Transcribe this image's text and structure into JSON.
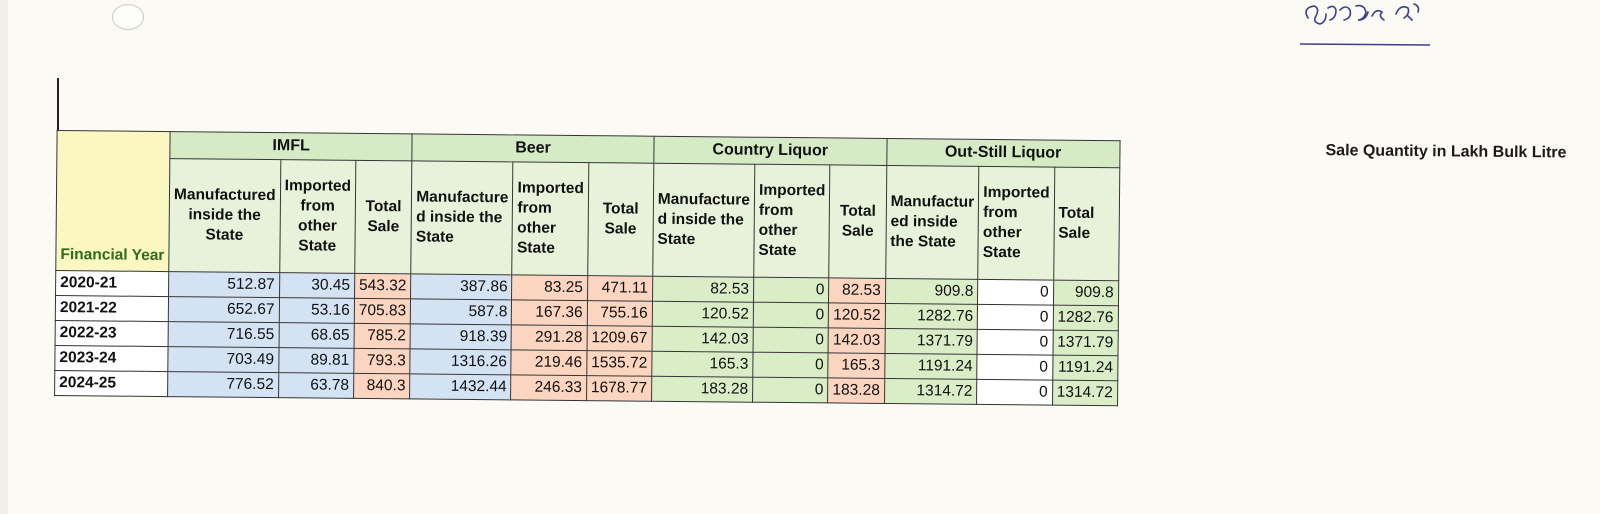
{
  "signature_text": "ପୌ୍ଷ୍ଟଣ୍ କ",
  "caption": "Sale Quantity in Lakh Bulk Litre",
  "table": {
    "year_header": "Financial Year",
    "groups": [
      "IMFL",
      "Beer",
      "Country Liquor",
      "Out-Still Liquor"
    ],
    "sub_headers": {
      "imfl": [
        "Manufactured inside the State",
        "Imported from other State",
        "Total Sale"
      ],
      "beer": [
        "Manufacture d inside the State",
        "Imported from other State",
        "Total Sale"
      ],
      "country": [
        "Manufacture d inside the State",
        "Imported from other State",
        "Total Sale"
      ],
      "outstill": [
        "Manufactur ed inside the State",
        "Imported from other State",
        "Total Sale"
      ]
    },
    "rows": [
      {
        "year": "2020-21",
        "v": [
          "512.87",
          "30.45",
          "543.32",
          "387.86",
          "83.25",
          "471.11",
          "82.53",
          "0",
          "82.53",
          "909.8",
          "0",
          "909.8"
        ]
      },
      {
        "year": "2021-22",
        "v": [
          "652.67",
          "53.16",
          "705.83",
          "587.8",
          "167.36",
          "755.16",
          "120.52",
          "0",
          "120.52",
          "1282.76",
          "0",
          "1282.76"
        ]
      },
      {
        "year": "2022-23",
        "v": [
          "716.55",
          "68.65",
          "785.2",
          "918.39",
          "291.28",
          "1209.67",
          "142.03",
          "0",
          "142.03",
          "1371.79",
          "0",
          "1371.79"
        ]
      },
      {
        "year": "2023-24",
        "v": [
          "703.49",
          "89.81",
          "793.3",
          "1316.26",
          "219.46",
          "1535.72",
          "165.3",
          "0",
          "165.3",
          "1191.24",
          "0",
          "1191.24"
        ]
      },
      {
        "year": "2024-25",
        "v": [
          "776.52",
          "63.78",
          "840.3",
          "1432.44",
          "246.33",
          "1678.77",
          "183.28",
          "0",
          "183.28",
          "1314.72",
          "0",
          "1314.72"
        ]
      }
    ]
  },
  "colors": {
    "imfl_cells": "#d4e3f3",
    "totals_and_beer": "#fbd5bf",
    "country_outstill": "#d9edc7",
    "header_green": "#d5ebc5",
    "year_header_bg": "#fbf7c2",
    "year_header_text": "#2e6b1c"
  }
}
